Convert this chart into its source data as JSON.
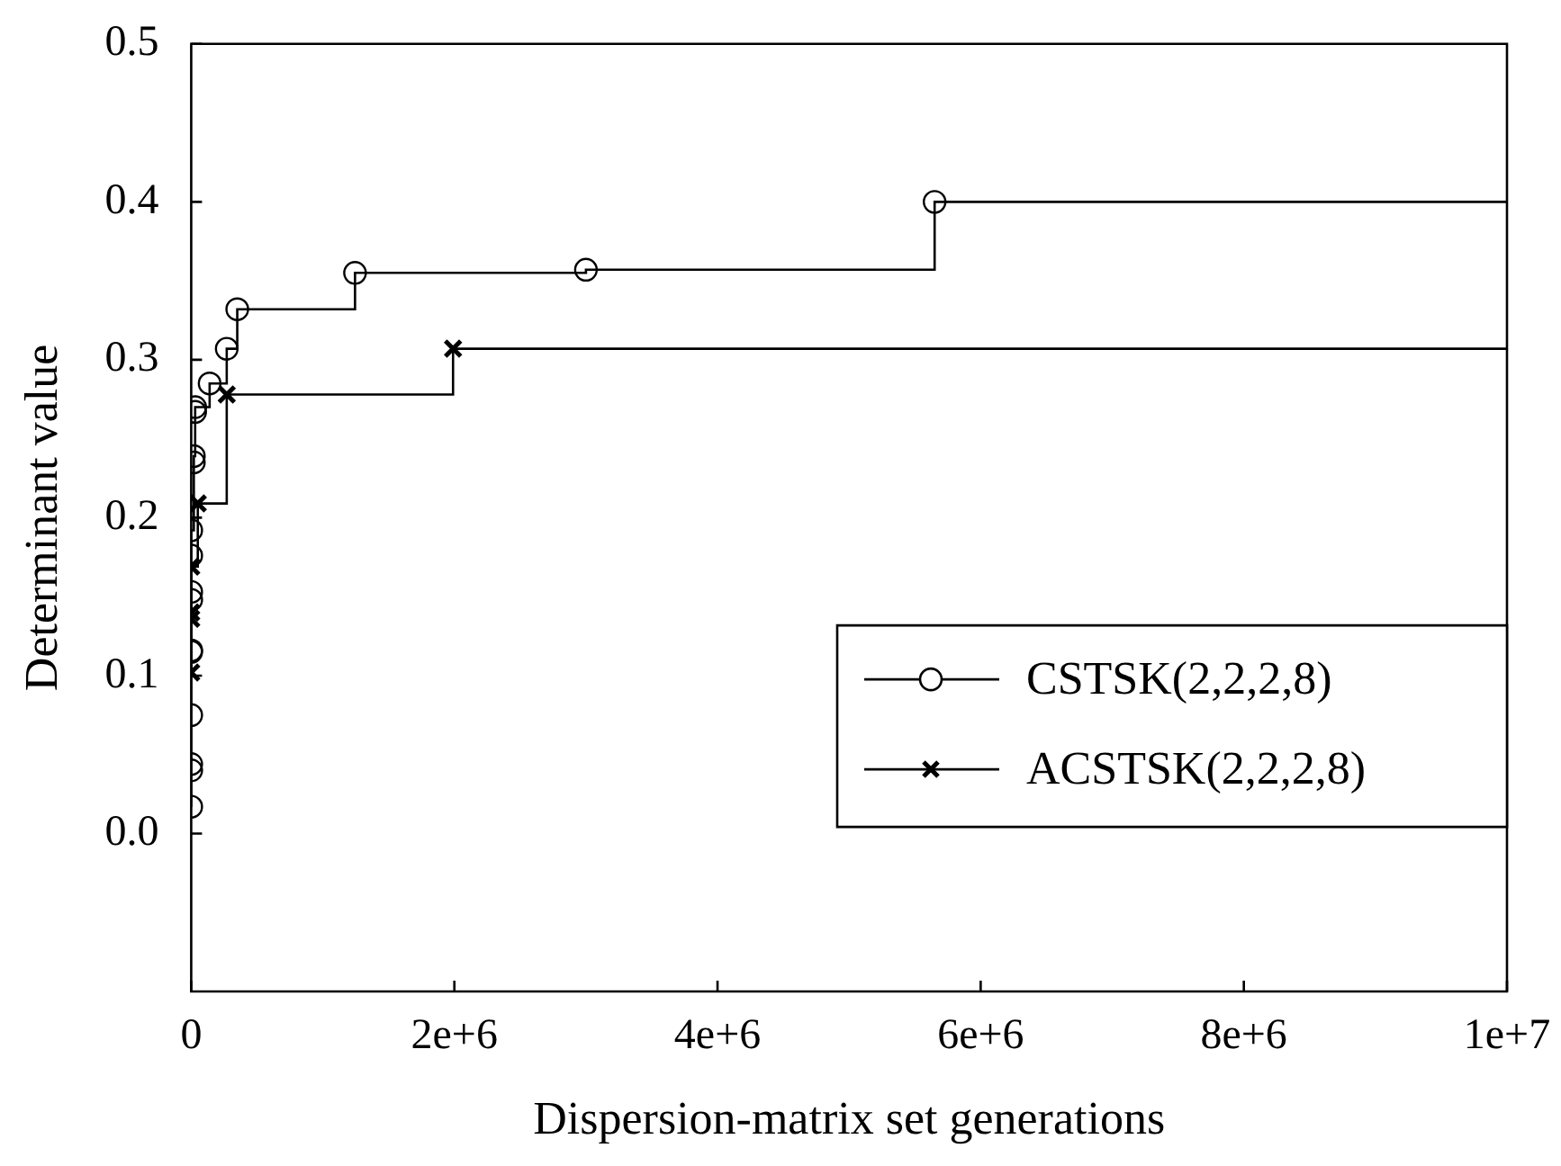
{
  "chart_data": {
    "type": "step",
    "xlabel": "Dispersion-matrix set generations",
    "ylabel": "Determinant value",
    "xlim": [
      0,
      10000000
    ],
    "xticks": [
      0,
      {
        "value": 2000000,
        "label": "2e+6"
      },
      {
        "value": 4000000,
        "label": "4e+6"
      },
      {
        "value": 6000000,
        "label": "6e+6"
      },
      {
        "value": 8000000,
        "label": "8e+6"
      },
      {
        "value": 10000000,
        "label": "1e+7"
      }
    ],
    "ylim": [
      -0.1,
      0.5
    ],
    "yticks": [
      {
        "value": 0,
        "label": "0.0"
      },
      0.1,
      0.2,
      0.3,
      0.4,
      0.5
    ],
    "grid": false,
    "legend": "right",
    "series": [
      {
        "name": "CSTSK(2,2,2,8)",
        "color": "#000000",
        "marker": "circle",
        "x": [
          0,
          0,
          0,
          0,
          0,
          0,
          0,
          0,
          0,
          0,
          20000,
          20000,
          30000,
          30000,
          140000,
          270000,
          350000,
          1245000,
          3000000,
          5650000,
          10000000
        ],
        "values": [
          0.017,
          0.04,
          0.044,
          0.075,
          0.115,
          0.116,
          0.148,
          0.153,
          0.176,
          0.192,
          0.235,
          0.239,
          0.267,
          0.27,
          0.285,
          0.307,
          0.332,
          0.355,
          0.357,
          0.4,
          0.4
        ]
      },
      {
        "name": "ACSTSK(2,2,2,8)",
        "color": "#000000",
        "marker": "cross",
        "x": [
          0,
          0,
          0,
          0,
          50000,
          270000,
          1990000,
          10000000
        ],
        "values": [
          0.102,
          0.136,
          0.14,
          0.169,
          0.209,
          0.278,
          0.307,
          0.307
        ]
      }
    ]
  }
}
